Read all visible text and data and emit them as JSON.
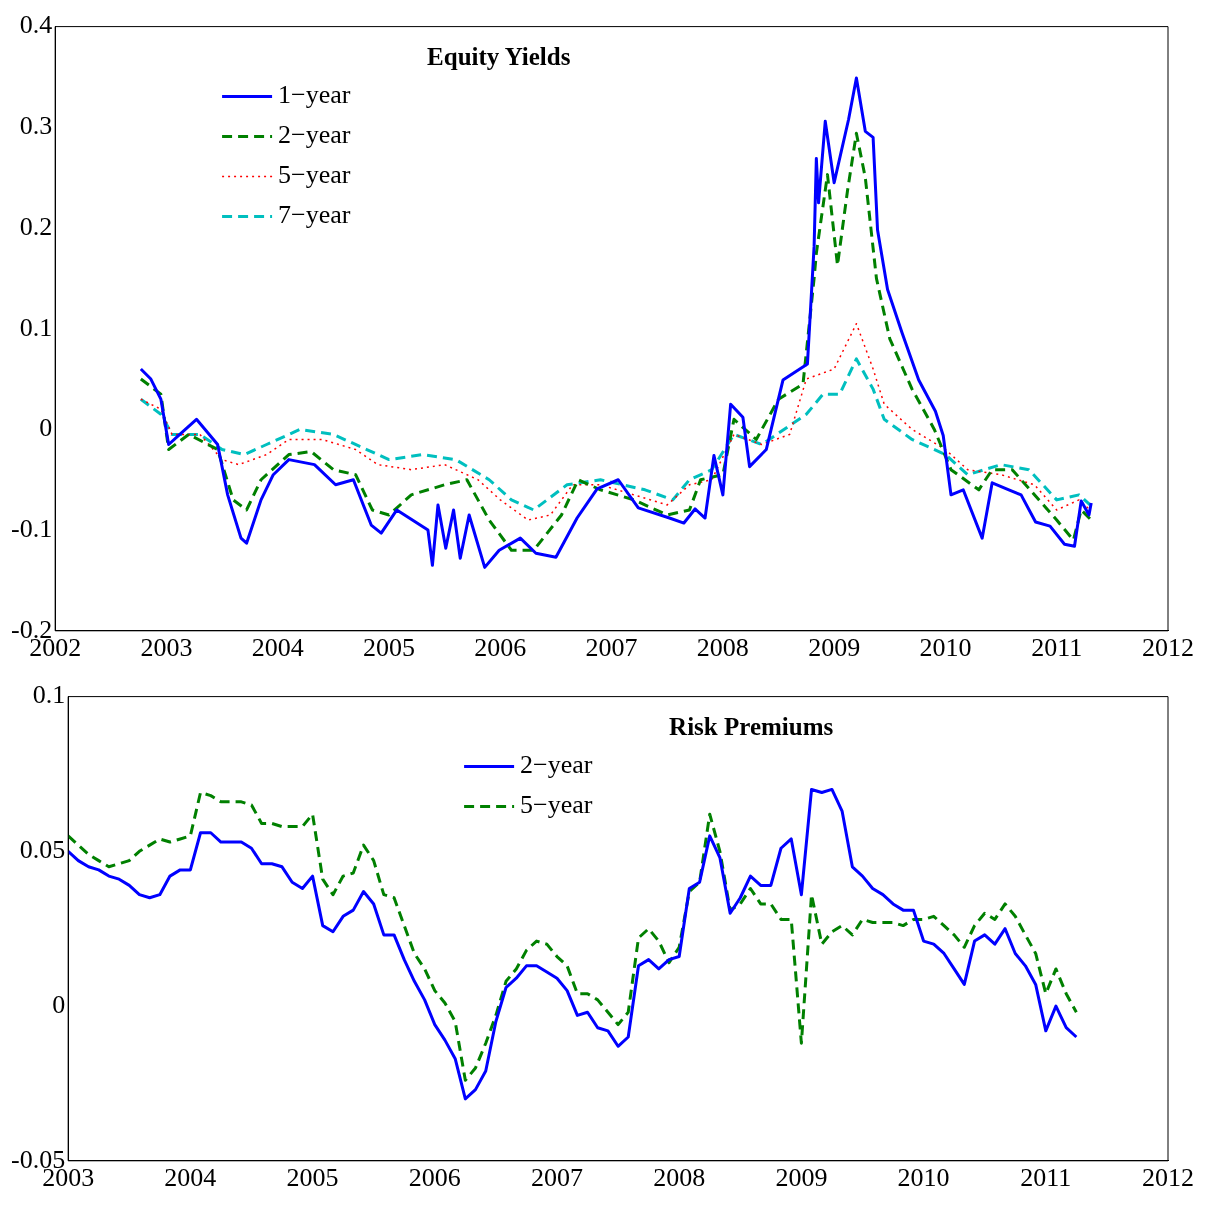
{
  "chart_data": [
    {
      "type": "line",
      "legend_title": "Equity Yields",
      "legend": "top left",
      "grid": false,
      "marker": "none",
      "xlim": [
        2002,
        2012
      ],
      "xticks": [
        2002,
        2003,
        2004,
        2005,
        2006,
        2007,
        2008,
        2009,
        2010,
        2011,
        2012
      ],
      "ylim": [
        -0.2,
        0.4
      ],
      "yticks": [
        -0.2,
        -0.1,
        0,
        0.1,
        0.2,
        0.3,
        0.4
      ],
      "series": [
        {
          "name": "1−year",
          "color": "#0000ff",
          "line_style": "solid",
          "x": [
            2002.77,
            2002.86,
            2002.95,
            2003.02,
            2003.12,
            2003.27,
            2003.46,
            2003.55,
            2003.67,
            2003.72,
            2003.85,
            2003.96,
            2004.1,
            2004.33,
            2004.52,
            2004.68,
            2004.84,
            2004.93,
            2005.07,
            2005.35,
            2005.39,
            2005.44,
            2005.51,
            2005.58,
            2005.64,
            2005.72,
            2005.86,
            2005.99,
            2006.18,
            2006.32,
            2006.5,
            2006.69,
            2006.87,
            2007.06,
            2007.24,
            2007.52,
            2007.65,
            2007.75,
            2007.84,
            2007.92,
            2008.0,
            2008.07,
            2008.18,
            2008.24,
            2008.39,
            2008.54,
            2008.76,
            2008.82,
            2008.84,
            2008.86,
            2008.92,
            2009.0,
            2009.13,
            2009.2,
            2009.28,
            2009.35,
            2009.39,
            2009.48,
            2009.61,
            2009.76,
            2009.91,
            2009.98,
            2010.05,
            2010.16,
            2010.33,
            2010.42,
            2010.57,
            2010.68,
            2010.81,
            2010.94,
            2011.07,
            2011.16,
            2011.22,
            2011.29,
            2011.31
          ],
          "values": [
            0.06,
            0.05,
            0.03,
            -0.015,
            -0.005,
            0.01,
            -0.015,
            -0.065,
            -0.108,
            -0.113,
            -0.07,
            -0.045,
            -0.03,
            -0.035,
            -0.055,
            -0.05,
            -0.095,
            -0.103,
            -0.08,
            -0.1,
            -0.135,
            -0.075,
            -0.118,
            -0.08,
            -0.128,
            -0.085,
            -0.137,
            -0.12,
            -0.108,
            -0.123,
            -0.127,
            -0.088,
            -0.059,
            -0.05,
            -0.078,
            -0.088,
            -0.093,
            -0.079,
            -0.088,
            -0.026,
            -0.065,
            0.025,
            0.012,
            -0.037,
            -0.02,
            0.049,
            0.065,
            0.182,
            0.269,
            0.225,
            0.306,
            0.245,
            0.308,
            0.349,
            0.296,
            0.29,
            0.198,
            0.139,
            0.096,
            0.049,
            0.018,
            -0.006,
            -0.065,
            -0.06,
            -0.108,
            -0.053,
            -0.06,
            -0.065,
            -0.092,
            -0.096,
            -0.114,
            -0.116,
            -0.071,
            -0.085,
            -0.073
          ]
        },
        {
          "name": "2−year",
          "color": "#008000",
          "line_style": "dashed",
          "x": [
            2002.77,
            2002.95,
            2003.02,
            2003.2,
            2003.46,
            2003.6,
            2003.72,
            2003.85,
            2004.1,
            2004.3,
            2004.5,
            2004.7,
            2004.85,
            2005.0,
            2005.2,
            2005.5,
            2005.7,
            2005.9,
            2006.1,
            2006.3,
            2006.55,
            2006.7,
            2006.9,
            2007.2,
            2007.5,
            2007.7,
            2007.8,
            2008.0,
            2008.1,
            2008.3,
            2008.5,
            2008.72,
            2008.82,
            2008.84,
            2008.94,
            2009.03,
            2009.12,
            2009.2,
            2009.28,
            2009.38,
            2009.5,
            2009.7,
            2009.9,
            2010.05,
            2010.3,
            2010.42,
            2010.6,
            2010.8,
            2011.0,
            2011.15,
            2011.22,
            2011.31
          ],
          "values": [
            0.05,
            0.035,
            -0.02,
            -0.005,
            -0.02,
            -0.07,
            -0.08,
            -0.05,
            -0.025,
            -0.022,
            -0.04,
            -0.045,
            -0.08,
            -0.085,
            -0.065,
            -0.055,
            -0.05,
            -0.09,
            -0.12,
            -0.12,
            -0.085,
            -0.05,
            -0.06,
            -0.07,
            -0.085,
            -0.08,
            -0.05,
            -0.045,
            0.01,
            -0.01,
            0.03,
            0.045,
            0.15,
            0.175,
            0.253,
            0.163,
            0.237,
            0.294,
            0.25,
            0.15,
            0.09,
            0.04,
            0.0,
            -0.04,
            -0.06,
            -0.04,
            -0.04,
            -0.065,
            -0.09,
            -0.11,
            -0.08,
            -0.09
          ]
        },
        {
          "name": "5−year",
          "color": "#ff0000",
          "line_style": "dotted",
          "x": [
            2002.77,
            2002.95,
            2003.05,
            2003.3,
            2003.5,
            2003.65,
            2003.9,
            2004.1,
            2004.4,
            2004.7,
            2004.9,
            2005.2,
            2005.5,
            2005.8,
            2006.0,
            2006.25,
            2006.45,
            2006.65,
            2006.9,
            2007.2,
            2007.5,
            2007.7,
            2007.9,
            2008.1,
            2008.35,
            2008.6,
            2008.75,
            2009.0,
            2009.2,
            2009.35,
            2009.45,
            2009.7,
            2010.0,
            2010.2,
            2010.5,
            2010.8,
            2011.0,
            2011.2,
            2011.3
          ],
          "values": [
            0.03,
            0.02,
            -0.005,
            -0.005,
            -0.03,
            -0.035,
            -0.025,
            -0.01,
            -0.01,
            -0.02,
            -0.035,
            -0.04,
            -0.035,
            -0.05,
            -0.07,
            -0.09,
            -0.085,
            -0.055,
            -0.055,
            -0.065,
            -0.075,
            -0.055,
            -0.05,
            -0.005,
            -0.015,
            -0.005,
            0.05,
            0.06,
            0.105,
            0.06,
            0.025,
            0.0,
            -0.02,
            -0.04,
            -0.045,
            -0.055,
            -0.08,
            -0.07,
            -0.08
          ]
        },
        {
          "name": "7−year",
          "color": "#00bfbf",
          "line_style": "dashed",
          "x": [
            2002.77,
            2002.95,
            2003.05,
            2003.3,
            2003.5,
            2003.7,
            2003.9,
            2004.2,
            2004.5,
            2004.8,
            2005.0,
            2005.3,
            2005.6,
            2005.9,
            2006.1,
            2006.3,
            2006.6,
            2006.9,
            2007.3,
            2007.55,
            2007.7,
            2007.9,
            2008.1,
            2008.35,
            2008.75,
            2008.9,
            2009.05,
            2009.2,
            2009.35,
            2009.45,
            2009.7,
            2010.0,
            2010.2,
            2010.5,
            2010.75,
            2011.0,
            2011.2,
            2011.3
          ],
          "values": [
            0.03,
            0.015,
            -0.005,
            -0.005,
            -0.02,
            -0.025,
            -0.015,
            0.0,
            -0.005,
            -0.02,
            -0.03,
            -0.025,
            -0.03,
            -0.05,
            -0.07,
            -0.08,
            -0.055,
            -0.05,
            -0.06,
            -0.07,
            -0.05,
            -0.04,
            -0.005,
            -0.015,
            0.015,
            0.035,
            0.035,
            0.07,
            0.04,
            0.01,
            -0.01,
            -0.025,
            -0.045,
            -0.035,
            -0.04,
            -0.07,
            -0.065,
            -0.075
          ]
        }
      ]
    },
    {
      "type": "line",
      "legend_title": "Risk Premiums",
      "legend": "top",
      "grid": false,
      "marker": "none",
      "xlim": [
        2003,
        2012
      ],
      "xticks": [
        2003,
        2004,
        2005,
        2006,
        2007,
        2008,
        2009,
        2010,
        2011,
        2012
      ],
      "ylim": [
        -0.05,
        0.1
      ],
      "yticks": [
        -0.05,
        0,
        0.05,
        0.1
      ],
      "x": [
        2003,
        2003.083,
        2003.167,
        2003.25,
        2003.333,
        2003.417,
        2003.5,
        2003.583,
        2003.667,
        2003.75,
        2003.833,
        2003.917,
        2004,
        2004.083,
        2004.167,
        2004.25,
        2004.333,
        2004.417,
        2004.5,
        2004.583,
        2004.667,
        2004.75,
        2004.833,
        2004.917,
        2005,
        2005.083,
        2005.167,
        2005.25,
        2005.333,
        2005.417,
        2005.5,
        2005.583,
        2005.667,
        2005.75,
        2005.833,
        2005.917,
        2006,
        2006.083,
        2006.167,
        2006.25,
        2006.333,
        2006.417,
        2006.5,
        2006.583,
        2006.667,
        2006.75,
        2006.833,
        2006.917,
        2007,
        2007.083,
        2007.167,
        2007.25,
        2007.333,
        2007.417,
        2007.5,
        2007.583,
        2007.667,
        2007.75,
        2007.833,
        2007.917,
        2008,
        2008.083,
        2008.167,
        2008.25,
        2008.333,
        2008.417,
        2008.5,
        2008.583,
        2008.667,
        2008.75,
        2008.833,
        2008.917,
        2009,
        2009.083,
        2009.167,
        2009.25,
        2009.333,
        2009.417,
        2009.5,
        2009.583,
        2009.667,
        2009.75,
        2009.833,
        2009.917,
        2010,
        2010.083,
        2010.167,
        2010.25,
        2010.333,
        2010.417,
        2010.5,
        2010.583,
        2010.667,
        2010.75,
        2010.833,
        2010.917,
        2011,
        2011.083,
        2011.167,
        2011.25
      ],
      "series": [
        {
          "name": "2−year",
          "color": "#0000ff",
          "line_style": "solid",
          "values": [
            0.05,
            0.047,
            0.045,
            0.044,
            0.042,
            0.041,
            0.039,
            0.036,
            0.035,
            0.036,
            0.042,
            0.044,
            0.044,
            0.056,
            0.056,
            0.053,
            0.053,
            0.053,
            0.051,
            0.046,
            0.046,
            0.045,
            0.04,
            0.038,
            0.042,
            0.026,
            0.024,
            0.029,
            0.031,
            0.037,
            0.033,
            0.023,
            0.023,
            0.015,
            0.008,
            0.002,
            -0.006,
            -0.011,
            -0.017,
            -0.03,
            -0.027,
            -0.021,
            -0.005,
            0.006,
            0.009,
            0.013,
            0.013,
            0.011,
            0.009,
            0.005,
            -0.003,
            -0.002,
            -0.007,
            -0.008,
            -0.013,
            -0.01,
            0.013,
            0.015,
            0.012,
            0.015,
            0.016,
            0.038,
            0.04,
            0.055,
            0.048,
            0.03,
            0.035,
            0.042,
            0.039,
            0.039,
            0.051,
            0.054,
            0.036,
            0.07,
            0.069,
            0.07,
            0.063,
            0.045,
            0.042,
            0.038,
            0.036,
            0.033,
            0.031,
            0.031,
            0.021,
            0.02,
            0.017,
            0.012,
            0.007,
            0.021,
            0.023,
            0.02,
            0.025,
            0.017,
            0.013,
            0.007,
            -0.008,
            0.0,
            -0.007,
            -0.01
          ]
        },
        {
          "name": "5−year",
          "color": "#008000",
          "line_style": "dashed",
          "values": [
            0.055,
            0.052,
            0.049,
            0.047,
            0.045,
            0.046,
            0.047,
            0.05,
            0.052,
            0.054,
            0.053,
            0.054,
            0.055,
            0.069,
            0.068,
            0.066,
            0.066,
            0.066,
            0.065,
            0.059,
            0.059,
            0.058,
            0.058,
            0.058,
            0.062,
            0.041,
            0.036,
            0.042,
            0.043,
            0.052,
            0.047,
            0.036,
            0.035,
            0.026,
            0.017,
            0.012,
            0.005,
            0.001,
            -0.005,
            -0.024,
            -0.02,
            -0.012,
            -0.003,
            0.008,
            0.012,
            0.018,
            0.021,
            0.02,
            0.016,
            0.013,
            0.004,
            0.004,
            0.002,
            -0.002,
            -0.006,
            -0.002,
            0.022,
            0.025,
            0.021,
            0.014,
            0.019,
            0.037,
            0.04,
            0.062,
            0.05,
            0.031,
            0.033,
            0.038,
            0.033,
            0.033,
            0.028,
            0.028,
            -0.012,
            0.036,
            0.02,
            0.024,
            0.026,
            0.023,
            0.028,
            0.027,
            0.027,
            0.027,
            0.026,
            0.028,
            0.028,
            0.029,
            0.026,
            0.023,
            0.019,
            0.026,
            0.03,
            0.028,
            0.033,
            0.029,
            0.023,
            0.017,
            0.004,
            0.012,
            0.004,
            -0.002
          ]
        }
      ]
    }
  ]
}
